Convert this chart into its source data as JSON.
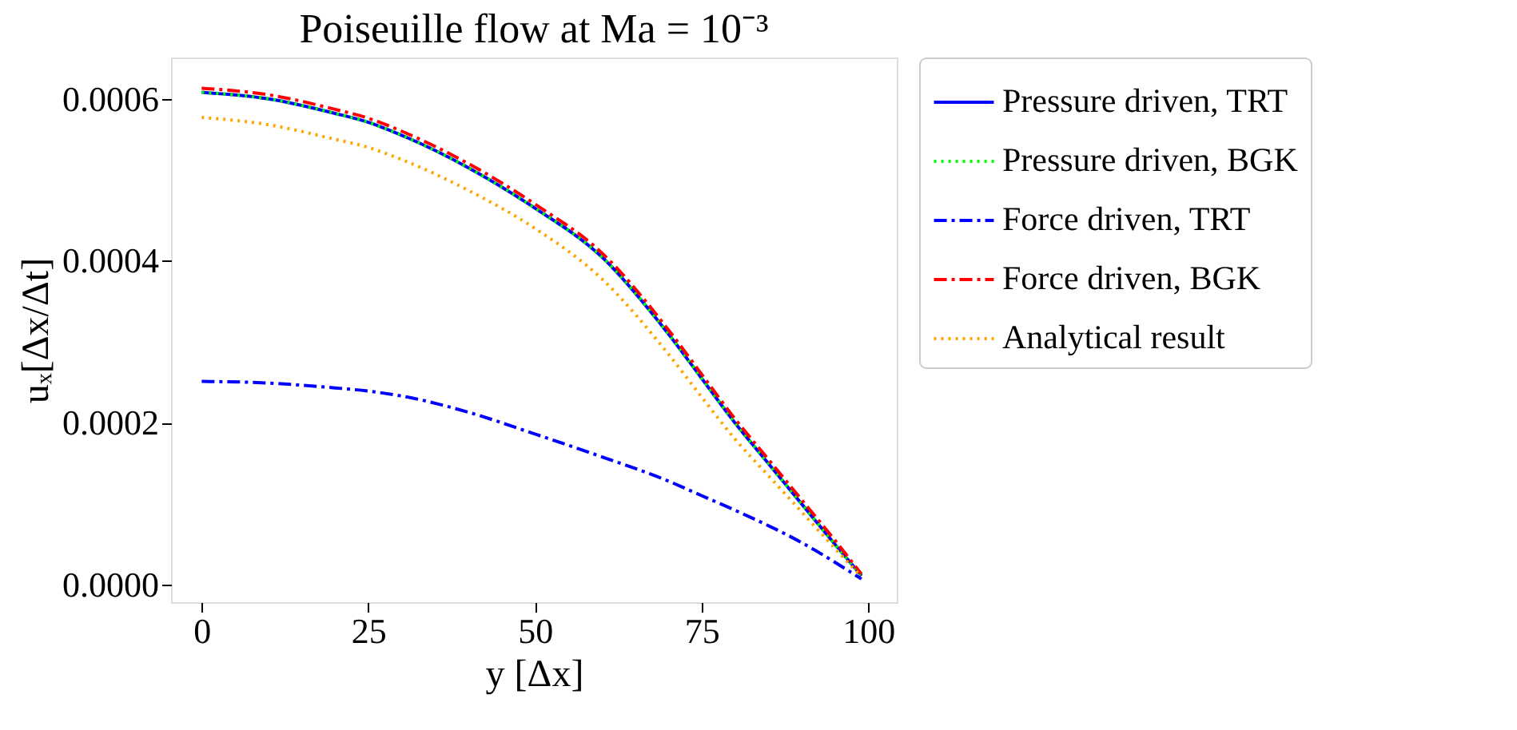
{
  "chart_data": {
    "type": "line",
    "title": "Poiseuille flow at Ma = 10⁻³",
    "xlabel": "y [Δx]",
    "ylabel": "uₓ[Δx/Δt]",
    "xlim": [
      -4.6,
      104.3
    ],
    "xticks": [
      0,
      25,
      50,
      75,
      100
    ],
    "ylim": [
      -2.17e-05,
      0.000651
    ],
    "yticks": [
      {
        "value": 0,
        "label": "0.0000"
      },
      {
        "value": 0.0002,
        "label": "0.0002"
      },
      {
        "value": 0.0004,
        "label": "0.0004"
      },
      {
        "value": 0.0006,
        "label": "0.0006"
      }
    ],
    "grid": false,
    "legend": "right",
    "marker": "none",
    "series": [
      {
        "name": "Pressure driven, TRT",
        "color": "#0000ff",
        "line_style": "solid",
        "x": [
          0,
          10,
          20,
          25,
          30,
          40,
          50,
          60,
          70,
          75,
          80,
          85,
          90,
          95,
          99
        ],
        "values": [
          0.000608,
          0.0006,
          0.000582,
          0.000571,
          0.000555,
          0.000515,
          0.000465,
          0.000405,
          0.00031,
          0.000255,
          0.0002,
          0.00015,
          0.0001,
          5e-05,
          1.1e-05
        ]
      },
      {
        "name": "Pressure driven, BGK",
        "color": "#00ff00",
        "line_style": "dotted",
        "x": [
          0,
          10,
          20,
          25,
          30,
          40,
          50,
          60,
          70,
          75,
          80,
          85,
          90,
          95,
          99
        ],
        "values": [
          0.000608,
          0.0006,
          0.000582,
          0.000571,
          0.000555,
          0.000515,
          0.000465,
          0.000405,
          0.00031,
          0.000255,
          0.0002,
          0.00015,
          0.0001,
          5e-05,
          1.1e-05
        ]
      },
      {
        "name": "Force driven, TRT",
        "color": "#0000ff",
        "line_style": "dashdot",
        "x": [
          0,
          10,
          20,
          25,
          30,
          40,
          50,
          60,
          70,
          75,
          80,
          90,
          99
        ],
        "values": [
          0.000251,
          0.000249,
          0.000243,
          0.000239,
          0.000233,
          0.000213,
          0.000186,
          0.000158,
          0.000128,
          0.00011,
          9.2e-05,
          5.2e-05,
          7e-06
        ]
      },
      {
        "name": "Force driven, BGK",
        "color": "#ff0000",
        "line_style": "dashdot",
        "x": [
          0,
          10,
          20,
          25,
          30,
          40,
          50,
          60,
          70,
          75,
          80,
          85,
          90,
          95,
          99
        ],
        "values": [
          0.000613,
          0.000605,
          0.000587,
          0.000576,
          0.00056,
          0.00052,
          0.00047,
          0.00041,
          0.000315,
          0.00026,
          0.000205,
          0.000155,
          0.000105,
          5.5e-05,
          1.3e-05
        ]
      },
      {
        "name": "Analytical result",
        "color": "#ffa500",
        "line_style": "dotted",
        "x": [
          0,
          10,
          20,
          25,
          30,
          40,
          50,
          60,
          70,
          75,
          80,
          85,
          90,
          95,
          99
        ],
        "values": [
          0.000577,
          0.000568,
          0.00055,
          0.00054,
          0.000525,
          0.000487,
          0.00044,
          0.000378,
          0.000285,
          0.000232,
          0.00018,
          0.000135,
          9e-05,
          4.5e-05,
          1e-05
        ]
      }
    ]
  }
}
